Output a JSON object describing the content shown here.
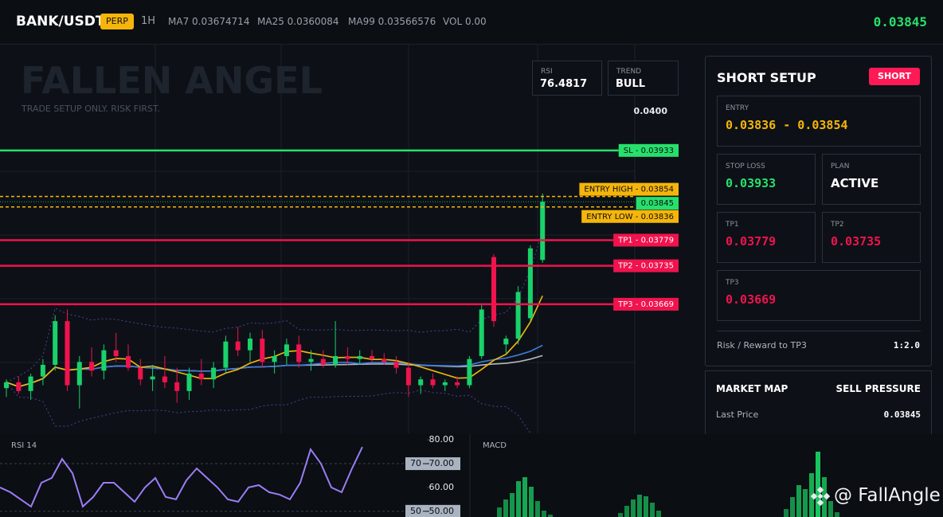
{
  "header": {
    "symbol": "BANK/USDT",
    "badge": "PERP",
    "interval": "1H",
    "indicators": [
      {
        "name": "MA7",
        "value": 0.03674714
      },
      {
        "name": "MA25",
        "value": 0.0360084
      },
      {
        "name": "MA99",
        "value": 0.03566576
      },
      {
        "name": "VOL",
        "value": "0.00"
      }
    ],
    "price": 0.03845
  },
  "watermark": {
    "title": "FALLEN ANGEL",
    "subtitle": "TRADE SETUP ONLY. RISK FIRST."
  },
  "stats": [
    {
      "label": "RSI",
      "value": 76.4817
    },
    {
      "label": "TREND",
      "value": "BULL"
    }
  ],
  "chart_data": [
    {
      "type": "candlestick",
      "candles": [
        [
          0.03525,
          0.0354,
          0.0351,
          0.03535
        ],
        [
          0.03535,
          0.03545,
          0.03515,
          0.0352
        ],
        [
          0.0352,
          0.0355,
          0.03505,
          0.03545
        ],
        [
          0.03545,
          0.03575,
          0.0353,
          0.03565
        ],
        [
          0.03565,
          0.0365,
          0.03555,
          0.0364
        ],
        [
          0.0364,
          0.0366,
          0.0352,
          0.0353
        ],
        [
          0.0353,
          0.0358,
          0.0349,
          0.0357
        ],
        [
          0.0357,
          0.03595,
          0.03545,
          0.03555
        ],
        [
          0.03555,
          0.036,
          0.0354,
          0.0359
        ],
        [
          0.0359,
          0.0362,
          0.0357,
          0.0358
        ],
        [
          0.0358,
          0.036,
          0.03555,
          0.0356
        ],
        [
          0.0356,
          0.03575,
          0.0353,
          0.0354
        ],
        [
          0.0354,
          0.03565,
          0.0352,
          0.03545
        ],
        [
          0.03545,
          0.0358,
          0.03525,
          0.03535
        ],
        [
          0.03535,
          0.0356,
          0.035,
          0.0352
        ],
        [
          0.0352,
          0.0356,
          0.03505,
          0.0355
        ],
        [
          0.0355,
          0.03575,
          0.0353,
          0.0354
        ],
        [
          0.0354,
          0.0357,
          0.03525,
          0.0356
        ],
        [
          0.0356,
          0.03615,
          0.0355,
          0.03605
        ],
        [
          0.03605,
          0.0363,
          0.0358,
          0.0359
        ],
        [
          0.0359,
          0.0362,
          0.0357,
          0.0361
        ],
        [
          0.0361,
          0.03625,
          0.0356,
          0.0357
        ],
        [
          0.0357,
          0.0359,
          0.0355,
          0.0358
        ],
        [
          0.0358,
          0.0361,
          0.03565,
          0.036
        ],
        [
          0.036,
          0.03615,
          0.0356,
          0.0357
        ],
        [
          0.0357,
          0.0359,
          0.03555,
          0.03575
        ],
        [
          0.03575,
          0.0359,
          0.0356,
          0.03565
        ],
        [
          0.03565,
          0.0364,
          0.0356,
          0.0358
        ],
        [
          0.0358,
          0.03595,
          0.03565,
          0.03575
        ],
        [
          0.03575,
          0.0359,
          0.03565,
          0.0358
        ],
        [
          0.0358,
          0.0359,
          0.0357,
          0.03575
        ],
        [
          0.03575,
          0.03585,
          0.03565,
          0.0357
        ],
        [
          0.0357,
          0.0358,
          0.0355,
          0.0356
        ],
        [
          0.0356,
          0.0357,
          0.0351,
          0.0353
        ],
        [
          0.0353,
          0.03545,
          0.03515,
          0.0354
        ],
        [
          0.0354,
          0.0355,
          0.03525,
          0.0353
        ],
        [
          0.0353,
          0.0354,
          0.0352,
          0.03535
        ],
        [
          0.03535,
          0.03545,
          0.03525,
          0.0353
        ],
        [
          0.0353,
          0.0358,
          0.03525,
          0.03575
        ],
        [
          0.0358,
          0.0367,
          0.03575,
          0.0366
        ],
        [
          0.0375,
          0.03755,
          0.0363,
          0.0364
        ],
        [
          0.036,
          0.03615,
          0.03585,
          0.0361
        ],
        [
          0.0361,
          0.037,
          0.036,
          0.0369
        ],
        [
          0.03645,
          0.0377,
          0.0364,
          0.03765
        ],
        [
          0.03745,
          0.03859,
          0.0374,
          0.03845
        ]
      ],
      "up_color": "#19d26b",
      "down_color": "#f0134d",
      "ylim": [
        0.03446,
        0.04116
      ],
      "yticks": [
        {
          "value": 0.04,
          "label": "0.0400"
        }
      ],
      "level_separator": " - ",
      "levels": [
        {
          "name": "SL",
          "value": 0.03933,
          "color": "#27e06b",
          "label_text": "#0b0e14",
          "line_style": "solid"
        },
        {
          "name": "ENTRY HIGH",
          "value": 0.03854,
          "color": "#f5b50a",
          "label_text": "#0b0e14",
          "line_style": "dashed"
        },
        {
          "name": "ENTRY LOW",
          "value": 0.03836,
          "color": "#f5b50a",
          "label_text": "#0b0e14",
          "line_style": "dashed"
        },
        {
          "name": "TP1",
          "value": 0.03779,
          "color": "#f0134d",
          "label_text": "#ffffff",
          "line_style": "solid"
        },
        {
          "name": "TP2",
          "value": 0.03735,
          "color": "#f0134d",
          "label_text": "#ffffff",
          "line_style": "solid"
        },
        {
          "name": "TP3",
          "value": 0.03669,
          "color": "#f0134d",
          "label_text": "#ffffff",
          "line_style": "solid"
        }
      ],
      "last_price": {
        "value": 0.03845,
        "color": "#27e06b"
      }
    },
    {
      "type": "line",
      "title": "RSI 14",
      "color": "#9b7df5",
      "values": [
        60,
        58,
        55,
        52,
        62,
        64,
        72,
        66,
        52,
        56,
        62,
        62,
        58,
        54,
        60,
        64,
        56,
        55,
        63,
        68,
        64,
        60,
        55,
        54,
        60,
        61,
        58,
        57,
        55,
        62,
        76,
        70,
        60,
        58,
        68,
        77
      ],
      "ylim": [
        47.6,
        82.4
      ],
      "yticks": [
        {
          "value": 80,
          "label": "80.00"
        },
        {
          "value": 70,
          "label": "70.00"
        },
        {
          "value": 60,
          "label": "60.00"
        },
        {
          "value": 50,
          "label": "50.00"
        }
      ],
      "levels": [
        70,
        50
      ]
    },
    {
      "type": "bar",
      "title": "MACD",
      "color": "#19c45f",
      "values": [
        0,
        0,
        0,
        12,
        22,
        30,
        45,
        50,
        38,
        20,
        8,
        3,
        0,
        0,
        0,
        0,
        0,
        0,
        0,
        0,
        0,
        0,
        5,
        14,
        22,
        28,
        26,
        18,
        8,
        0,
        0,
        0,
        0,
        0,
        0,
        0,
        0,
        0,
        0,
        0,
        0,
        0,
        0,
        0,
        0,
        0,
        0,
        0,
        10,
        25,
        40,
        35,
        55,
        82,
        50,
        20,
        6
      ]
    }
  ],
  "panel": {
    "title": "SHORT SETUP",
    "badge": "SHORT",
    "entry": {
      "label": "ENTRY",
      "value": "0.03836 - 0.03854"
    },
    "stop_loss": {
      "label": "STOP LOSS",
      "value": 0.03933
    },
    "plan": {
      "label": "PLAN",
      "value": "ACTIVE"
    },
    "tp1": {
      "label": "TP1",
      "value": 0.03779
    },
    "tp2": {
      "label": "TP2",
      "value": 0.03735
    },
    "tp3": {
      "label": "TP3",
      "value": 0.03669
    },
    "risk_reward": {
      "label": "Risk / Reward to TP3",
      "value": "1:2.0"
    }
  },
  "market_map": {
    "title": "MARKET MAP",
    "status": "SELL PRESSURE",
    "last_price_label": "Last Price",
    "last_price": 0.03845
  },
  "brand": "@ FallAngle"
}
